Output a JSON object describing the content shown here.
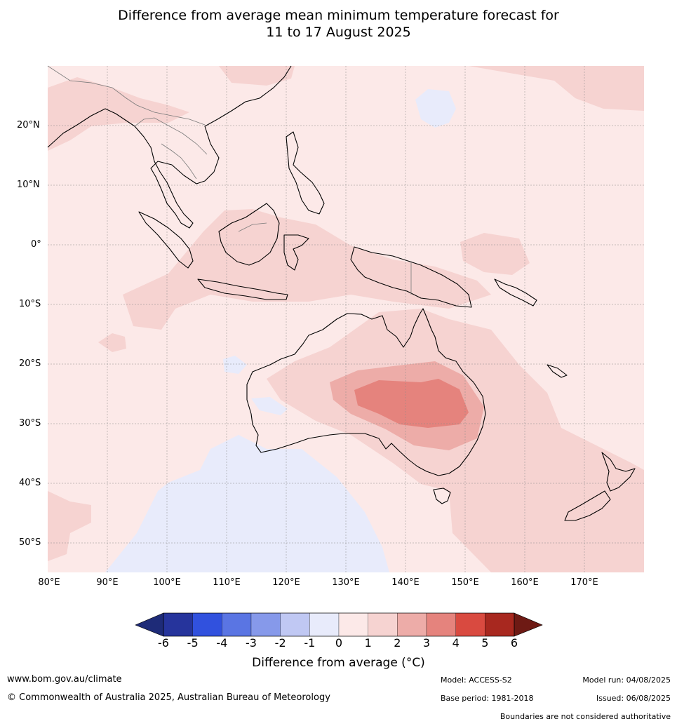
{
  "title_line1": "Difference from average mean minimum temperature forecast for",
  "title_line2": "11 to 17 August 2025",
  "lat_labels": [
    {
      "lat": 20,
      "text": "20°N"
    },
    {
      "lat": 10,
      "text": "10°N"
    },
    {
      "lat": 0,
      "text": "0°"
    },
    {
      "lat": -10,
      "text": "10°S"
    },
    {
      "lat": -20,
      "text": "20°S"
    },
    {
      "lat": -30,
      "text": "30°S"
    },
    {
      "lat": -40,
      "text": "40°S"
    },
    {
      "lat": -50,
      "text": "50°S"
    }
  ],
  "lon_labels": [
    {
      "lon": 80,
      "text": "80°E"
    },
    {
      "lon": 90,
      "text": "90°E"
    },
    {
      "lon": 100,
      "text": "100°E"
    },
    {
      "lon": 110,
      "text": "110°E"
    },
    {
      "lon": 120,
      "text": "120°E"
    },
    {
      "lon": 130,
      "text": "130°E"
    },
    {
      "lon": 140,
      "text": "140°E"
    },
    {
      "lon": 150,
      "text": "150°E"
    },
    {
      "lon": 160,
      "text": "160°E"
    },
    {
      "lon": 170,
      "text": "170°E"
    }
  ],
  "colorbar": {
    "ticks": [
      "-6",
      "-5",
      "-4",
      "-3",
      "-2",
      "-1",
      "0",
      "1",
      "2",
      "3",
      "4",
      "5",
      "6"
    ],
    "colors": [
      "#26349c",
      "#3151de",
      "#5a75e3",
      "#8699ea",
      "#c0c8f3",
      "#e8ebfb",
      "#fce9e8",
      "#f6d3d1",
      "#edaca8",
      "#e5837d",
      "#d94a40",
      "#a8281f"
    ],
    "under_color": "#1e2b78",
    "over_color": "#6e1a14",
    "label": "Difference from average (",
    "label_unit": "°C)"
  },
  "map_colors": {
    "base": "#fce9e8",
    "level1": "#f6d3d1",
    "level2": "#edaca8",
    "level3": "#e5837d",
    "cool": "#e8ebfb"
  },
  "footer": {
    "website": "www.bom.gov.au/climate",
    "copyright": "© Commonwealth of Australia 2025, Australian Bureau of Meteorology",
    "model": "Model: ACCESS-S2",
    "base_period": "Base period: 1981-2018",
    "model_run": "Model run: 04/08/2025",
    "issued": "Issued: 06/08/2025",
    "disclaimer": "Boundaries are not considered authoritative"
  }
}
